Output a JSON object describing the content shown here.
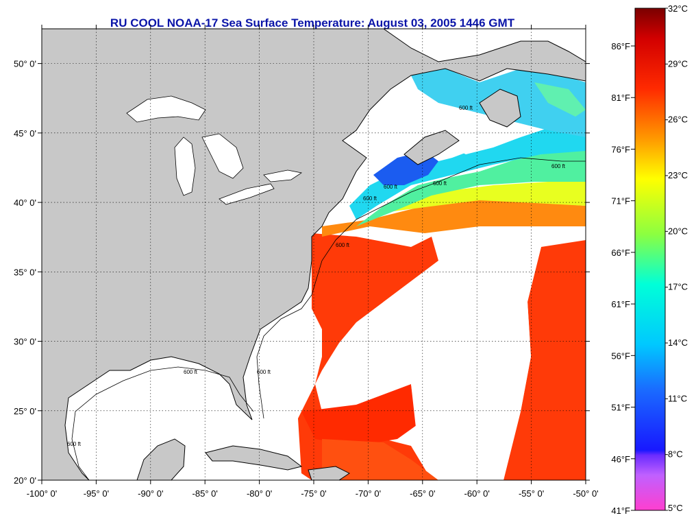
{
  "map": {
    "title": "RU COOL  NOAA-17  Sea Surface Temperature:  August 03, 2005 1446 GMT",
    "lon_range": [
      -100,
      -50
    ],
    "lat_range": [
      20,
      52.5
    ],
    "x_ticks": [
      "-100° 0'",
      "-95° 0'",
      "-90° 0'",
      "-85° 0'",
      "-80° 0'",
      "-75° 0'",
      "-70° 0'",
      "-65° 0'",
      "-60° 0'",
      "-55° 0'",
      "-50° 0'"
    ],
    "y_ticks": [
      "50° 0'",
      "45° 0'",
      "40° 0'",
      "35° 0'",
      "30° 0'",
      "25° 0'",
      "20° 0'"
    ],
    "contour_labels": [
      "600 ft",
      "600 ft",
      "600 ft",
      "600 ft",
      "600 ft",
      "600 ft",
      "600 ft",
      "600 ft",
      "600 ft"
    ],
    "land_color": "#c8c8c8",
    "cloud_color": "#ffffff",
    "grid": "dotted"
  },
  "colorbar": {
    "celsius": [
      "32°C",
      "29°C",
      "26°C",
      "23°C",
      "20°C",
      "17°C",
      "14°C",
      "11°C",
      "8°C",
      "5°C"
    ],
    "fahrenheit": [
      "86°F",
      "81°F",
      "76°F",
      "71°F",
      "66°F",
      "61°F",
      "56°F",
      "51°F",
      "46°F",
      "41°F"
    ],
    "range_c": [
      5,
      32
    ]
  }
}
